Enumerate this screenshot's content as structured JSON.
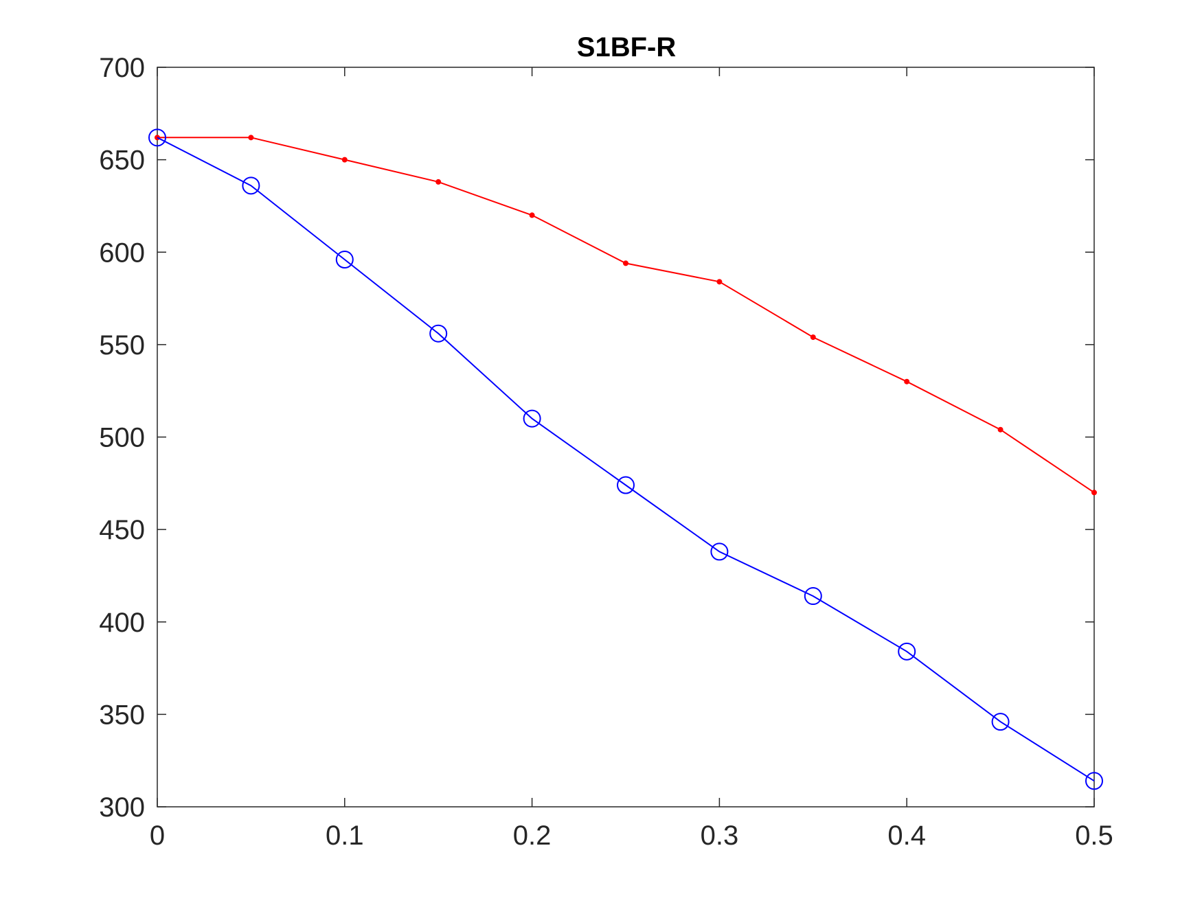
{
  "chart_data": {
    "type": "line",
    "title": "S1BF-R",
    "xlabel": "",
    "ylabel": "",
    "xlim": [
      0,
      0.5
    ],
    "ylim": [
      300,
      700
    ],
    "xticks": [
      0,
      0.1,
      0.2,
      0.3,
      0.4,
      0.5
    ],
    "xtick_labels": [
      "0",
      "0.1",
      "0.2",
      "0.3",
      "0.4",
      "0.5"
    ],
    "yticks": [
      300,
      350,
      400,
      450,
      500,
      550,
      600,
      650,
      700
    ],
    "ytick_labels": [
      "300",
      "350",
      "400",
      "450",
      "500",
      "550",
      "600",
      "650",
      "700"
    ],
    "grid": false,
    "legend": false,
    "x": [
      0,
      0.05,
      0.1,
      0.15,
      0.2,
      0.25,
      0.3,
      0.35,
      0.4,
      0.45,
      0.5
    ],
    "series": [
      {
        "color": "#ff0000",
        "marker": "dot",
        "values": [
          662,
          662,
          650,
          638,
          620,
          594,
          584,
          554,
          530,
          504,
          470
        ]
      },
      {
        "color": "#0000ff",
        "marker": "circle",
        "values": [
          662,
          636,
          596,
          556,
          510,
          474,
          438,
          414,
          384,
          346,
          314
        ]
      }
    ]
  }
}
